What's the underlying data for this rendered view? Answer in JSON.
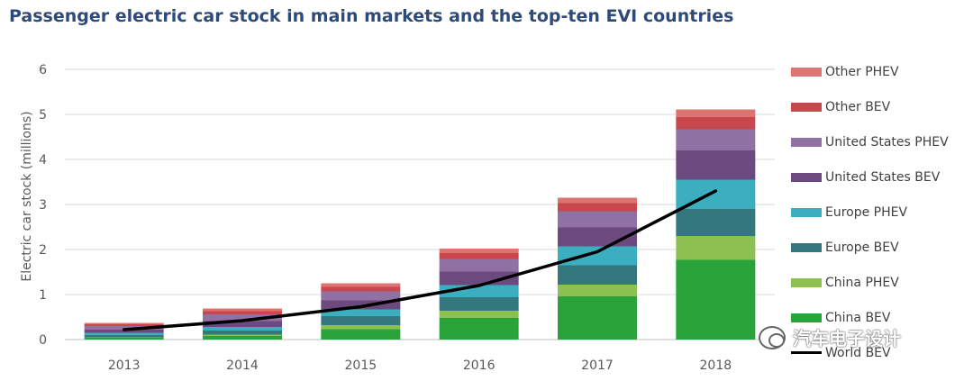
{
  "chart_data": {
    "type": "bar",
    "title": "Passenger electric car stock in main markets and the top-ten EVI countries",
    "ylabel": "Electric car stock (millions)",
    "xlabel": "",
    "ylim": [
      0,
      6
    ],
    "yticks": [
      0,
      1,
      2,
      3,
      4,
      5,
      6
    ],
    "categories": [
      "2013",
      "2014",
      "2015",
      "2016",
      "2017",
      "2018"
    ],
    "series": [
      {
        "name": "China BEV",
        "type": "bar",
        "color": "#2aa33a",
        "values": [
          0.04,
          0.08,
          0.23,
          0.48,
          0.96,
          1.77
        ]
      },
      {
        "name": "China PHEV",
        "type": "bar",
        "color": "#8cc152",
        "values": [
          0.01,
          0.03,
          0.09,
          0.16,
          0.26,
          0.53
        ]
      },
      {
        "name": "Europe BEV",
        "type": "bar",
        "color": "#35777f",
        "values": [
          0.05,
          0.09,
          0.2,
          0.3,
          0.43,
          0.6
        ]
      },
      {
        "name": "Europe PHEV",
        "type": "bar",
        "color": "#3bafbf",
        "values": [
          0.05,
          0.08,
          0.15,
          0.27,
          0.42,
          0.65
        ]
      },
      {
        "name": "United States BEV",
        "type": "bar",
        "color": "#6c4a80",
        "values": [
          0.07,
          0.13,
          0.2,
          0.3,
          0.42,
          0.65
        ]
      },
      {
        "name": "United States PHEV",
        "type": "bar",
        "color": "#9170a4",
        "values": [
          0.08,
          0.15,
          0.2,
          0.28,
          0.36,
          0.47
        ]
      },
      {
        "name": "Other BEV",
        "type": "bar",
        "color": "#c8474c",
        "values": [
          0.04,
          0.07,
          0.1,
          0.13,
          0.18,
          0.27
        ]
      },
      {
        "name": "Other PHEV",
        "type": "bar",
        "color": "#dd7472",
        "values": [
          0.03,
          0.06,
          0.08,
          0.1,
          0.12,
          0.17
        ]
      },
      {
        "name": "World BEV",
        "type": "line",
        "color": "#000000",
        "values": [
          0.22,
          0.42,
          0.73,
          1.2,
          1.95,
          3.3
        ]
      }
    ],
    "legend_position": "right",
    "grid": true
  },
  "watermark": {
    "text": "汽车电子设计",
    "icon": "wechat-icon"
  }
}
